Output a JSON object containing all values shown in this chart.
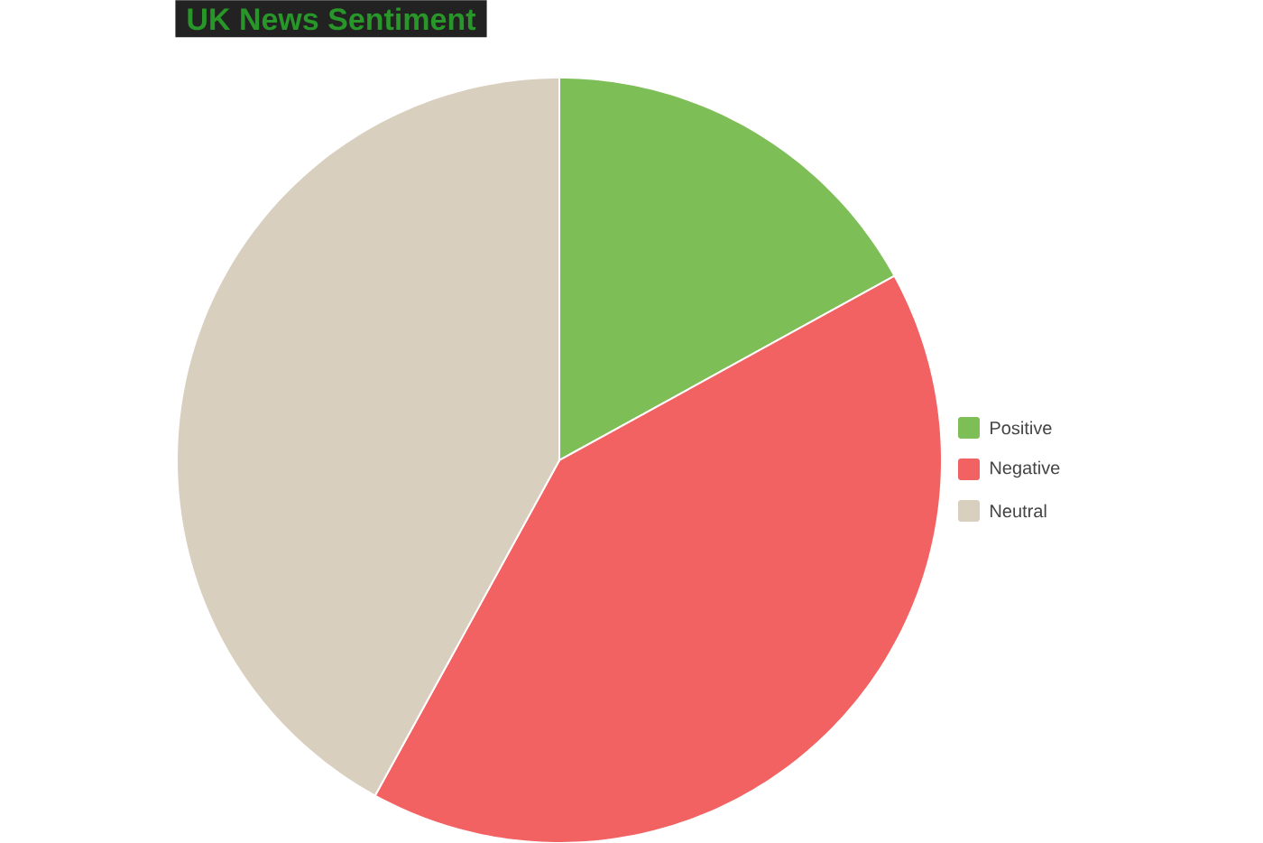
{
  "chart_data": {
    "type": "pie",
    "title": "UK News Sentiment",
    "categories": [
      "Positive",
      "Negative",
      "Neutral"
    ],
    "values": [
      17,
      41,
      42
    ],
    "colors": [
      "#7dbe57",
      "#f26262",
      "#d8cfbf"
    ],
    "legend": "right"
  }
}
